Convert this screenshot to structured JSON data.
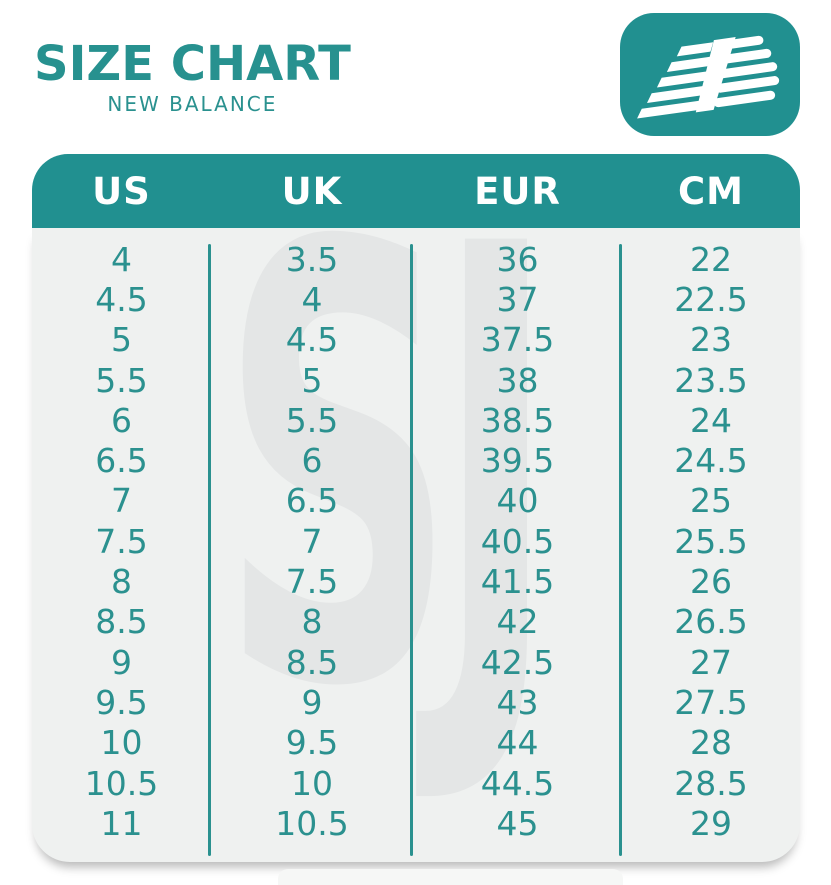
{
  "header": {
    "title": "SIZE CHART",
    "subtitle": "NEW BALANCE"
  },
  "logo": {
    "label": "New Balance NB logo"
  },
  "watermark": "SJ",
  "colors": {
    "teal": "#219090",
    "text_teal": "#2b918f",
    "header_text": "#ffffff",
    "body_bg": "#eff1f0",
    "watermark_gray": "#e4e6e6"
  },
  "chart_data": {
    "type": "table",
    "title": "SIZE CHART",
    "subtitle": "NEW BALANCE",
    "columns": [
      "US",
      "UK",
      "EUR",
      "CM"
    ],
    "rows": [
      [
        "4",
        "3.5",
        "36",
        "22"
      ],
      [
        "4.5",
        "4",
        "37",
        "22.5"
      ],
      [
        "5",
        "4.5",
        "37.5",
        "23"
      ],
      [
        "5.5",
        "5",
        "38",
        "23.5"
      ],
      [
        "6",
        "5.5",
        "38.5",
        "24"
      ],
      [
        "6.5",
        "6",
        "39.5",
        "24.5"
      ],
      [
        "7",
        "6.5",
        "40",
        "25"
      ],
      [
        "7.5",
        "7",
        "40.5",
        "25.5"
      ],
      [
        "8",
        "7.5",
        "41.5",
        "26"
      ],
      [
        "8.5",
        "8",
        "42",
        "26.5"
      ],
      [
        "9",
        "8.5",
        "42.5",
        "27"
      ],
      [
        "9.5",
        "9",
        "43",
        "27.5"
      ],
      [
        "10",
        "9.5",
        "44",
        "28"
      ],
      [
        "10.5",
        "10",
        "44.5",
        "28.5"
      ],
      [
        "11",
        "10.5",
        "45",
        "29"
      ]
    ]
  }
}
